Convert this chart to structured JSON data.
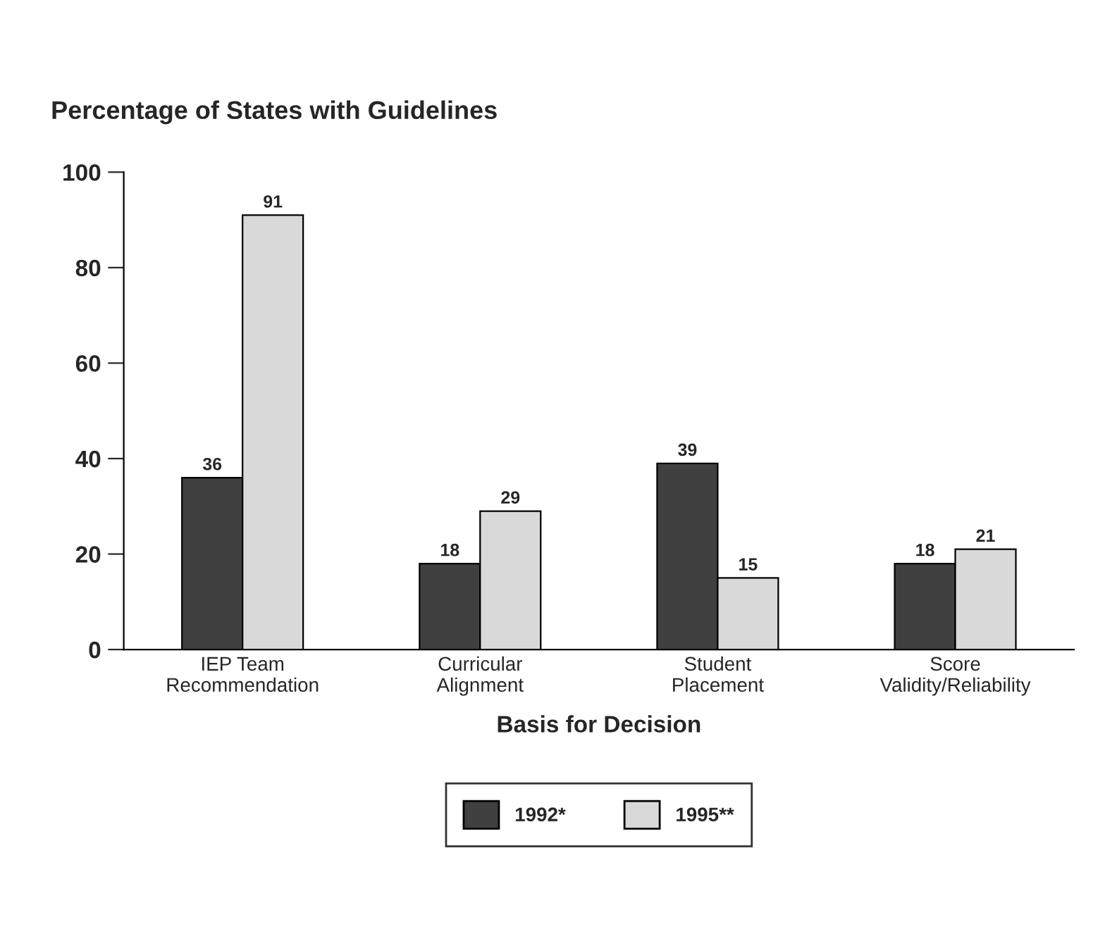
{
  "chart_data": {
    "type": "bar",
    "title": "Percentage of States with Guidelines",
    "xlabel": "Basis for Decision",
    "categories": [
      "IEP Team\nRecommendation",
      "Curricular\nAlignment",
      "Student\nPlacement",
      "Score\nValidity/Reliability"
    ],
    "series": [
      {
        "name": "1992*",
        "color": "#404040",
        "values": [
          36,
          18,
          39,
          18
        ]
      },
      {
        "name": "1995**",
        "color": "#d9d9d9",
        "values": [
          91,
          29,
          15,
          21
        ]
      }
    ],
    "ylim": [
      0,
      100
    ],
    "yticks": [
      0,
      20,
      40,
      60,
      80,
      100
    ],
    "grid": false,
    "legend": "bottom",
    "data_labels": true
  }
}
